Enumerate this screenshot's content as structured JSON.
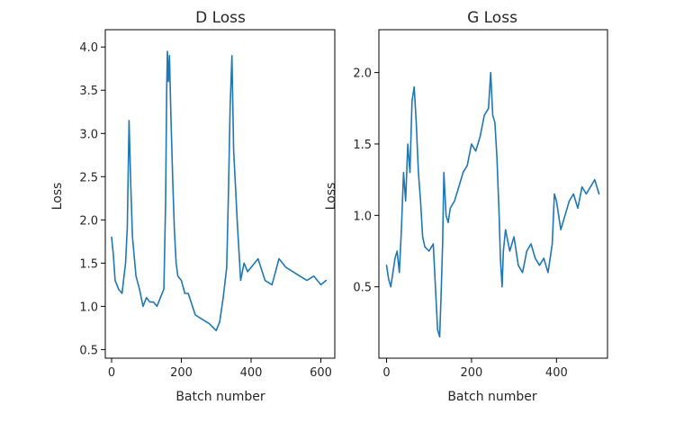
{
  "chart_data": [
    {
      "type": "line",
      "title": "D Loss",
      "xlabel": "Batch number",
      "ylabel": "Loss",
      "xlim": [
        -18,
        640
      ],
      "ylim": [
        0.4,
        4.2
      ],
      "xticks": [
        0,
        200,
        400,
        600
      ],
      "yticks": [
        0.5,
        1.0,
        1.5,
        2.0,
        2.5,
        3.0,
        3.5,
        4.0
      ],
      "ytick_labels": [
        "0.5",
        "1.0",
        "1.5",
        "2.0",
        "2.5",
        "3.0",
        "3.5",
        "4.0"
      ],
      "color": "#1f77b4",
      "grid": false,
      "series": [
        {
          "x": [
            0,
            5,
            10,
            20,
            30,
            40,
            45,
            50,
            55,
            60,
            70,
            80,
            90,
            100,
            110,
            120,
            130,
            140,
            150,
            155,
            158,
            160,
            163,
            166,
            170,
            175,
            180,
            185,
            190,
            200,
            210,
            220,
            240,
            260,
            280,
            300,
            310,
            320,
            330,
            335,
            340,
            345,
            350,
            355,
            360,
            370,
            380,
            390,
            400,
            420,
            440,
            460,
            480,
            500,
            520,
            540,
            560,
            580,
            600,
            615
          ],
          "values": [
            1.8,
            1.6,
            1.3,
            1.2,
            1.15,
            1.5,
            1.9,
            3.15,
            2.4,
            1.8,
            1.35,
            1.2,
            1.0,
            1.1,
            1.05,
            1.05,
            1.0,
            1.1,
            1.2,
            2.2,
            3.5,
            3.95,
            3.6,
            3.9,
            3.2,
            2.5,
            1.9,
            1.5,
            1.35,
            1.3,
            1.15,
            1.15,
            0.9,
            0.85,
            0.8,
            0.72,
            0.82,
            1.1,
            1.45,
            2.3,
            3.3,
            3.9,
            2.8,
            2.4,
            2.0,
            1.3,
            1.5,
            1.4,
            1.45,
            1.55,
            1.3,
            1.25,
            1.55,
            1.45,
            1.4,
            1.35,
            1.3,
            1.35,
            1.25,
            1.3
          ]
        }
      ]
    },
    {
      "type": "line",
      "title": "G Loss",
      "xlabel": "Batch number",
      "ylabel": "Loss",
      "xlim": [
        -18,
        520
      ],
      "ylim": [
        0.0,
        2.3
      ],
      "xticks": [
        0,
        200,
        400
      ],
      "yticks": [
        0.5,
        1.0,
        1.5,
        2.0
      ],
      "ytick_labels": [
        "0.5",
        "1.0",
        "1.5",
        "2.0"
      ],
      "color": "#1f77b4",
      "grid": false,
      "series": [
        {
          "x": [
            0,
            5,
            10,
            15,
            20,
            25,
            30,
            35,
            40,
            45,
            50,
            55,
            60,
            65,
            70,
            75,
            80,
            85,
            90,
            100,
            110,
            115,
            120,
            125,
            128,
            132,
            135,
            140,
            145,
            150,
            160,
            170,
            180,
            190,
            200,
            210,
            220,
            230,
            240,
            245,
            250,
            255,
            260,
            265,
            268,
            272,
            275,
            280,
            290,
            300,
            310,
            320,
            330,
            340,
            350,
            360,
            370,
            375,
            380,
            385,
            390,
            395,
            400,
            410,
            420,
            430,
            440,
            450,
            460,
            470,
            480,
            490,
            500
          ],
          "values": [
            0.65,
            0.55,
            0.5,
            0.6,
            0.7,
            0.75,
            0.6,
            0.9,
            1.3,
            1.1,
            1.5,
            1.3,
            1.8,
            1.9,
            1.65,
            1.3,
            1.1,
            0.85,
            0.78,
            0.75,
            0.8,
            0.5,
            0.2,
            0.15,
            0.4,
            0.8,
            1.3,
            1.0,
            0.95,
            1.05,
            1.1,
            1.2,
            1.3,
            1.35,
            1.5,
            1.45,
            1.55,
            1.7,
            1.75,
            2.0,
            1.7,
            1.65,
            1.4,
            1.0,
            0.7,
            0.5,
            0.75,
            0.9,
            0.75,
            0.85,
            0.65,
            0.6,
            0.75,
            0.8,
            0.7,
            0.65,
            0.7,
            0.65,
            0.6,
            0.7,
            0.8,
            1.15,
            1.1,
            0.9,
            1.0,
            1.1,
            1.15,
            1.05,
            1.2,
            1.15,
            1.2,
            1.25,
            1.15
          ]
        }
      ]
    }
  ]
}
